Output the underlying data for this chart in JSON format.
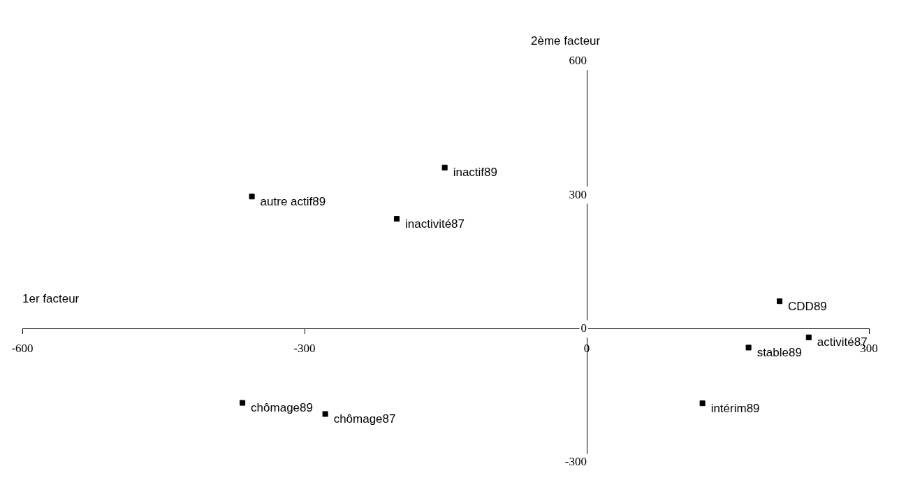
{
  "chart_data": {
    "type": "scatter",
    "xlabel": "1er facteur",
    "ylabel": "2ème facteur",
    "x": [
      -151,
      -356,
      -202,
      205,
      236,
      172,
      123,
      -366,
      -278
    ],
    "series": [
      {
        "color": "#000000",
        "values": [
          362,
          297,
          247,
          62,
          -19,
          -42,
          -167,
          -166,
          -191
        ]
      }
    ],
    "xlim": [
      -600,
      300
    ],
    "xticks": [
      -600,
      -300,
      0,
      300
    ],
    "ylim": [
      -300,
      600
    ],
    "yticks": [
      -300,
      0,
      300,
      600
    ],
    "marker": "square",
    "legend": false,
    "grid": false,
    "annotations": [
      {
        "text": "inactif89",
        "x": -151,
        "y": 362
      },
      {
        "text": "autre actif89",
        "x": -356,
        "y": 297
      },
      {
        "text": "inactivité87",
        "x": -202,
        "y": 247
      },
      {
        "text": "CDD89",
        "x": 205,
        "y": 62
      },
      {
        "text": "activité87",
        "x": 236,
        "y": -19
      },
      {
        "text": "stable89",
        "x": 172,
        "y": -42
      },
      {
        "text": "intérim89",
        "x": 123,
        "y": -167
      },
      {
        "text": "chômage89",
        "x": -366,
        "y": -166
      },
      {
        "text": "chômage87",
        "x": -278,
        "y": -191
      }
    ]
  }
}
